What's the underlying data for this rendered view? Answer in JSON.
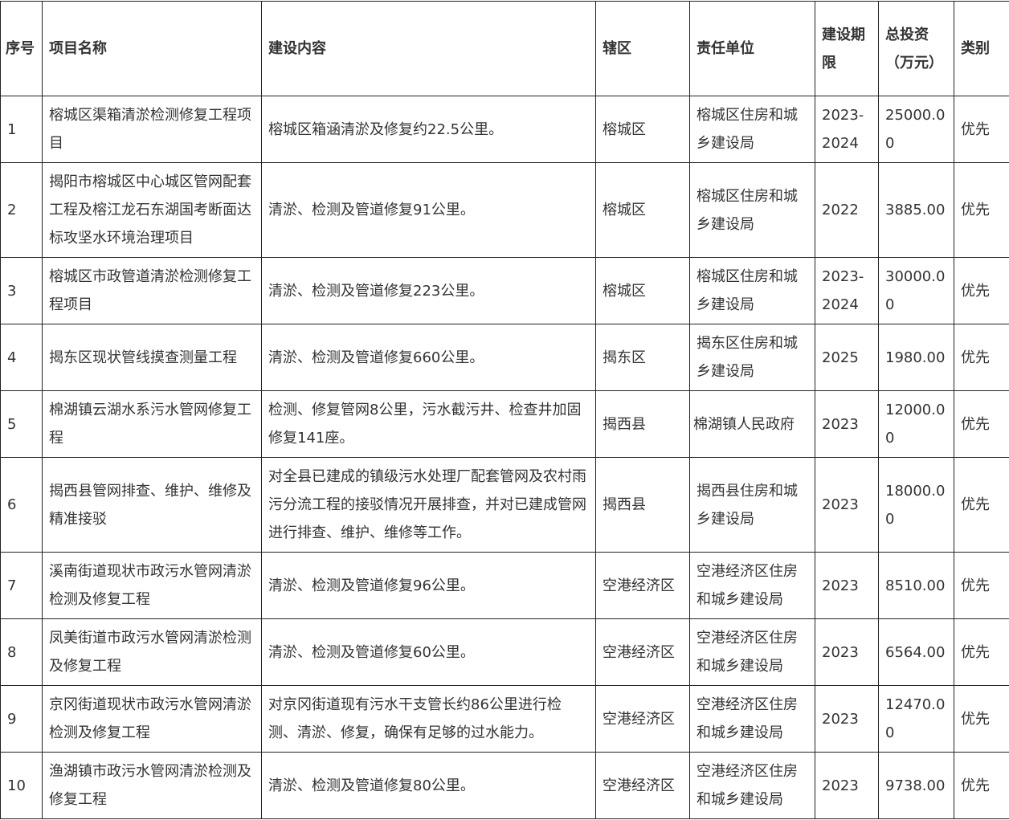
{
  "headers": [
    "序号",
    "项目名称",
    "建设内容",
    "辖区",
    "责任单位",
    "建设期限",
    "总投资（万元）",
    "类别"
  ],
  "rows": [
    {
      "no": "1",
      "name": "榕城区渠箱清淤检测修复工程项目",
      "content": "榕城区箱涵清淤及修复约22.5公里。",
      "district": "榕城区",
      "unit": "榕城区住房和城乡建设局",
      "period": "2023-2024",
      "investment": "25000.00",
      "category": "优先"
    },
    {
      "no": "2",
      "name": "揭阳市榕城区中心城区管网配套工程及榕江龙石东湖国考断面达标攻坚水环境治理项目",
      "content": "清淤、检测及管道修复91公里。",
      "district": "榕城区",
      "unit": "榕城区住房和城乡建设局",
      "period": "2022",
      "investment": "3885.00",
      "category": "优先"
    },
    {
      "no": "3",
      "name": "榕城区市政管道清淤检测修复工程项目",
      "content": "清淤、检测及管道修复223公里。",
      "district": "榕城区",
      "unit": "榕城区住房和城乡建设局",
      "period": "2023-2024",
      "investment": "30000.00",
      "category": "优先"
    },
    {
      "no": "4",
      "name": "揭东区现状管线摸查测量工程",
      "content": "清淤、检测及管道修复660公里。",
      "district": "揭东区",
      "unit": "揭东区住房和城乡建设局",
      "period": "2025",
      "investment": "1980.00",
      "category": "优先"
    },
    {
      "no": "5",
      "name": "棉湖镇云湖水系污水管网修复工程",
      "content": "检测、修复管网8公里，污水截污井、检查井加固修复141座。",
      "district": "揭西县",
      "unit": "棉湖镇人民政府",
      "period": "2023",
      "investment": "12000.00",
      "category": "优先"
    },
    {
      "no": "6",
      "name": "揭西县管网排查、维护、维修及精准接驳",
      "content": "对全县已建成的镇级污水处理厂配套管网及农村雨污分流工程的接驳情况开展排查，并对已建成管网进行排查、维护、维修等工作。",
      "district": "揭西县",
      "unit": "揭西县住房和城乡建设局",
      "period": "2023",
      "investment": "18000.00",
      "category": "优先"
    },
    {
      "no": "7",
      "name": "溪南街道现状市政污水管网清淤检测及修复工程",
      "content": "清淤、检测及管道修复96公里。",
      "district": "空港经济区",
      "unit": "空港经济区住房和城乡建设局",
      "period": "2023",
      "investment": "8510.00",
      "category": "优先"
    },
    {
      "no": "8",
      "name": "凤美街道市政污水管网清淤检测及修复工程",
      "content": "清淤、检测及管道修复60公里。",
      "district": "空港经济区",
      "unit": "空港经济区住房和城乡建设局",
      "period": "2023",
      "investment": "6564.00",
      "category": "优先"
    },
    {
      "no": "9",
      "name": "京冈街道现状市政污水管网清淤检测及修复工程",
      "content": "对京冈街道现有污水干支管长约86公里进行检测、清淤、修复，确保有足够的过水能力。",
      "district": "空港经济区",
      "unit": "空港经济区住房和城乡建设局",
      "period": "2023",
      "investment": "12470.00",
      "category": "优先"
    },
    {
      "no": "10",
      "name": "渔湖镇市政污水管网清淤检测及修复工程",
      "content": "清淤、检测及管道修复80公里。",
      "district": "空港经济区",
      "unit": "空港经济区住房和城乡建设局",
      "period": "2023",
      "investment": "9738.00",
      "category": "优先"
    }
  ]
}
